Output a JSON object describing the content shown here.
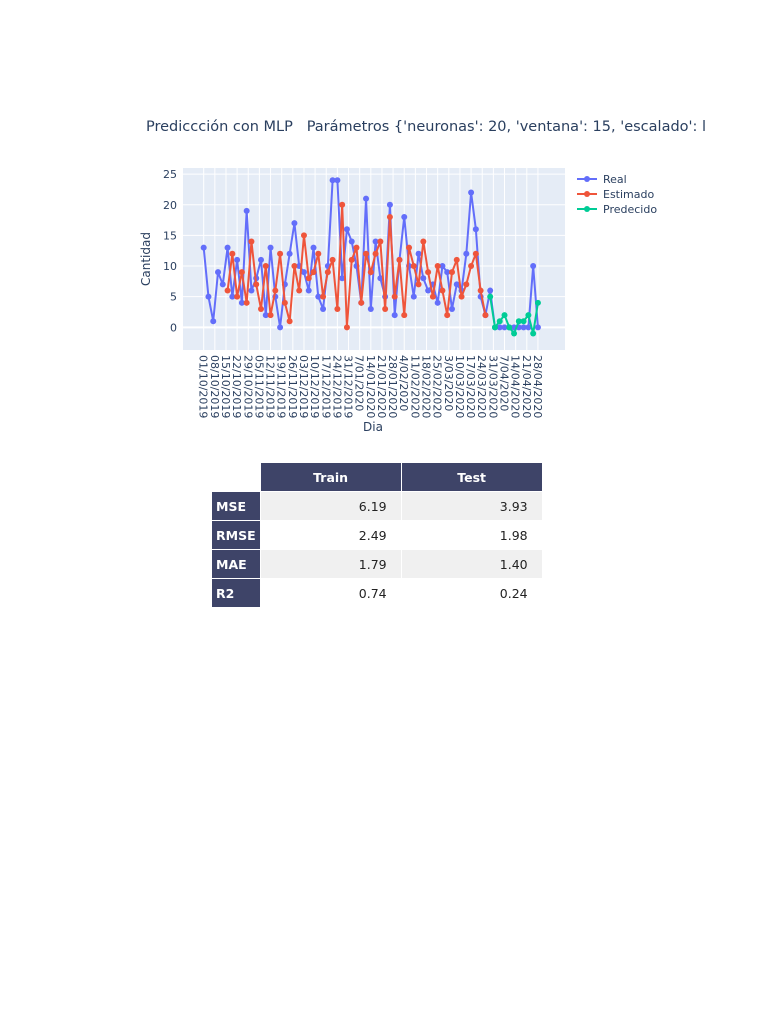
{
  "chart_data": {
    "type": "line",
    "title": "Prediccción con MLP   Parámetros {'neuronas': 20, 'ventana': 15, 'escalado': l",
    "y_label": "Cantidad",
    "x_label": "Dia",
    "x": [
      "01/10/2019",
      "04/10/2019",
      "07/10/2019",
      "10/10/2019",
      "13/10/2019",
      "16/10/2019",
      "19/10/2019",
      "22/10/2019",
      "25/10/2019",
      "28/10/2019",
      "31/10/2019",
      "03/11/2019",
      "06/11/2019",
      "09/11/2019",
      "12/11/2019",
      "15/11/2019",
      "18/11/2019",
      "21/11/2019",
      "24/11/2019",
      "27/11/2019",
      "30/11/2019",
      "03/12/2019",
      "06/12/2019",
      "09/12/2019",
      "12/12/2019",
      "15/12/2019",
      "18/12/2019",
      "21/12/2019",
      "24/12/2019",
      "27/12/2019",
      "30/12/2019",
      "02/01/2020",
      "05/01/2020",
      "08/01/2020",
      "11/01/2020",
      "14/01/2020",
      "17/01/2020",
      "20/01/2020",
      "23/01/2020",
      "26/01/2020",
      "29/01/2020",
      "01/02/2020",
      "04/02/2020",
      "07/02/2020",
      "10/02/2020",
      "13/02/2020",
      "16/02/2020",
      "19/02/2020",
      "22/02/2020",
      "25/02/2020",
      "28/02/2020",
      "02/03/2020",
      "05/03/2020",
      "08/03/2020",
      "11/03/2020",
      "14/03/2020",
      "17/03/2020",
      "20/03/2020",
      "23/03/2020",
      "26/03/2020",
      "29/03/2020",
      "01/04/2020",
      "04/04/2020",
      "07/04/2020",
      "10/04/2020",
      "13/04/2020",
      "16/04/2020",
      "19/04/2020",
      "22/04/2020",
      "25/04/2020",
      "28/04/2020"
    ],
    "series": [
      {
        "name": "Real",
        "color": "#636efa",
        "values": [
          13,
          5,
          1,
          9,
          7,
          13,
          5,
          11,
          4,
          19,
          6,
          8,
          11,
          2,
          13,
          5,
          0,
          7,
          12,
          17,
          10,
          9,
          6,
          13,
          5,
          3,
          10,
          24,
          24,
          8,
          16,
          14,
          10,
          4,
          21,
          3,
          14,
          8,
          5,
          20,
          2,
          11,
          18,
          10,
          5,
          12,
          8,
          6,
          7,
          4,
          10,
          9,
          3,
          7,
          6,
          12,
          22,
          16,
          5,
          2,
          6,
          0,
          0,
          0,
          0,
          0,
          0,
          0,
          0,
          10,
          0
        ]
      },
      {
        "name": "Estimado",
        "color": "#ef553b",
        "values": [
          null,
          null,
          null,
          null,
          null,
          6,
          12,
          5,
          9,
          4,
          14,
          7,
          3,
          10,
          2,
          6,
          12,
          4,
          1,
          10,
          6,
          15,
          8,
          9,
          12,
          5,
          9,
          11,
          3,
          20,
          0,
          11,
          13,
          4,
          12,
          9,
          12,
          14,
          3,
          18,
          5,
          11,
          2,
          13,
          10,
          7,
          14,
          9,
          5,
          10,
          6,
          2,
          9,
          11,
          5,
          7,
          10,
          12,
          6,
          2,
          null,
          null,
          null,
          null,
          null,
          null,
          null,
          null,
          null,
          null,
          null
        ]
      },
      {
        "name": "Predecido",
        "color": "#00cc96",
        "values": [
          null,
          null,
          null,
          null,
          null,
          null,
          null,
          null,
          null,
          null,
          null,
          null,
          null,
          null,
          null,
          null,
          null,
          null,
          null,
          null,
          null,
          null,
          null,
          null,
          null,
          null,
          null,
          null,
          null,
          null,
          null,
          null,
          null,
          null,
          null,
          null,
          null,
          null,
          null,
          null,
          null,
          null,
          null,
          null,
          null,
          null,
          null,
          null,
          null,
          null,
          null,
          null,
          null,
          null,
          null,
          null,
          null,
          null,
          null,
          null,
          5,
          0,
          1,
          2,
          0,
          -1,
          1,
          1,
          2,
          -1,
          4
        ]
      }
    ],
    "xlim": [
      "18/09/2019",
      "15/05/2020"
    ],
    "xticks": [
      "01/10/2019",
      "08/10/2019",
      "15/10/2019",
      "22/10/2019",
      "29/10/2019",
      "05/11/2019",
      "12/11/2019",
      "19/11/2019",
      "26/11/2019",
      "03/12/2019",
      "10/12/2019",
      "17/12/2019",
      "24/12/2019",
      "31/12/2019",
      "7/01/2020",
      "14/01/2020",
      "21/01/2020",
      "28/01/2020",
      "4/02/2020",
      "11/02/2020",
      "18/02/2020",
      "25/02/2020",
      "3/03/2020",
      "10/03/2020",
      "17/03/2020",
      "24/03/2020",
      "31/03/2020",
      "7/04/2020",
      "14/04/2020",
      "21/04/2020",
      "28/04/2020"
    ],
    "ylim": [
      -3.7,
      26
    ],
    "yticks": [
      0,
      5,
      10,
      15,
      20,
      25
    ],
    "grid": true,
    "legend": "right"
  },
  "table": {
    "columns": [
      "Train",
      "Test"
    ],
    "rows": [
      [
        "MSE",
        "6.19",
        "3.93"
      ],
      [
        "RMSE",
        "2.49",
        "1.98"
      ],
      [
        "MAE",
        "1.79",
        "1.40"
      ],
      [
        "R2",
        "0.74",
        "0.24"
      ]
    ]
  }
}
